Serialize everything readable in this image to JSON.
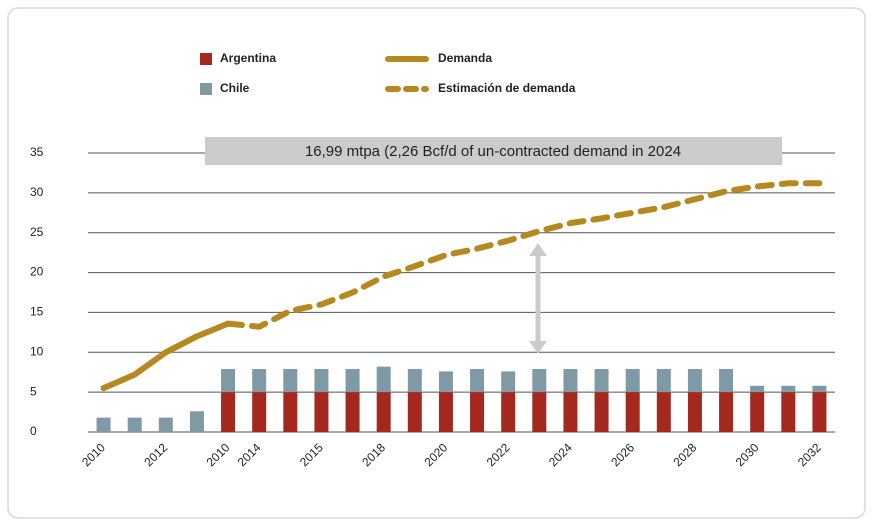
{
  "chart_data": {
    "type": "bar",
    "annotation": "16,99 mtpa (2,26 Bcf/d of un-contracted demand in 2024",
    "categories": [
      "2010",
      null,
      "2012",
      null,
      "2010",
      "2014",
      null,
      "2015",
      null,
      "2018",
      null,
      "2020",
      null,
      "2022",
      null,
      "2024",
      null,
      "2026",
      null,
      "2028",
      null,
      "2030",
      null,
      "2032"
    ],
    "series": [
      {
        "name": "Argentina",
        "type": "bar",
        "color": "#a5281f",
        "values": [
          0,
          0,
          0,
          0,
          5,
          5,
          5,
          5,
          5,
          5,
          5,
          5,
          5,
          5,
          5,
          5,
          5,
          5,
          5,
          5,
          5,
          5,
          5,
          5
        ]
      },
      {
        "name": "Chile",
        "type": "bar",
        "color": "#7f99a5",
        "values": [
          1.8,
          1.8,
          1.8,
          2.6,
          2.9,
          2.9,
          2.9,
          2.9,
          2.9,
          3.2,
          2.9,
          2.6,
          2.9,
          2.6,
          2.9,
          2.9,
          2.9,
          2.9,
          2.9,
          2.9,
          2.9,
          0.8,
          0.8,
          0.8
        ]
      },
      {
        "name": "Demanda",
        "type": "line",
        "dashed": false,
        "color": "#b5891f",
        "values": [
          5.5,
          7.2,
          10,
          12,
          13.6,
          null,
          null,
          null,
          null,
          null,
          null,
          null,
          null,
          null,
          null,
          null,
          null,
          null,
          null,
          null,
          null,
          null,
          null,
          null
        ]
      },
      {
        "name": "Estimación de demanda",
        "type": "line",
        "dashed": true,
        "color": "#b5891f",
        "values": [
          null,
          null,
          null,
          null,
          13.6,
          13.2,
          15.2,
          16,
          17.5,
          19.5,
          20.8,
          22.2,
          23,
          24,
          25.2,
          26.2,
          26.8,
          27.5,
          28.2,
          29.2,
          30.2,
          30.8,
          31.2,
          31.2
        ]
      }
    ],
    "ylim": [
      0,
      35
    ],
    "yticks": [
      0,
      5,
      10,
      15,
      20,
      25,
      30,
      35
    ],
    "grid": true,
    "legend": "top"
  }
}
